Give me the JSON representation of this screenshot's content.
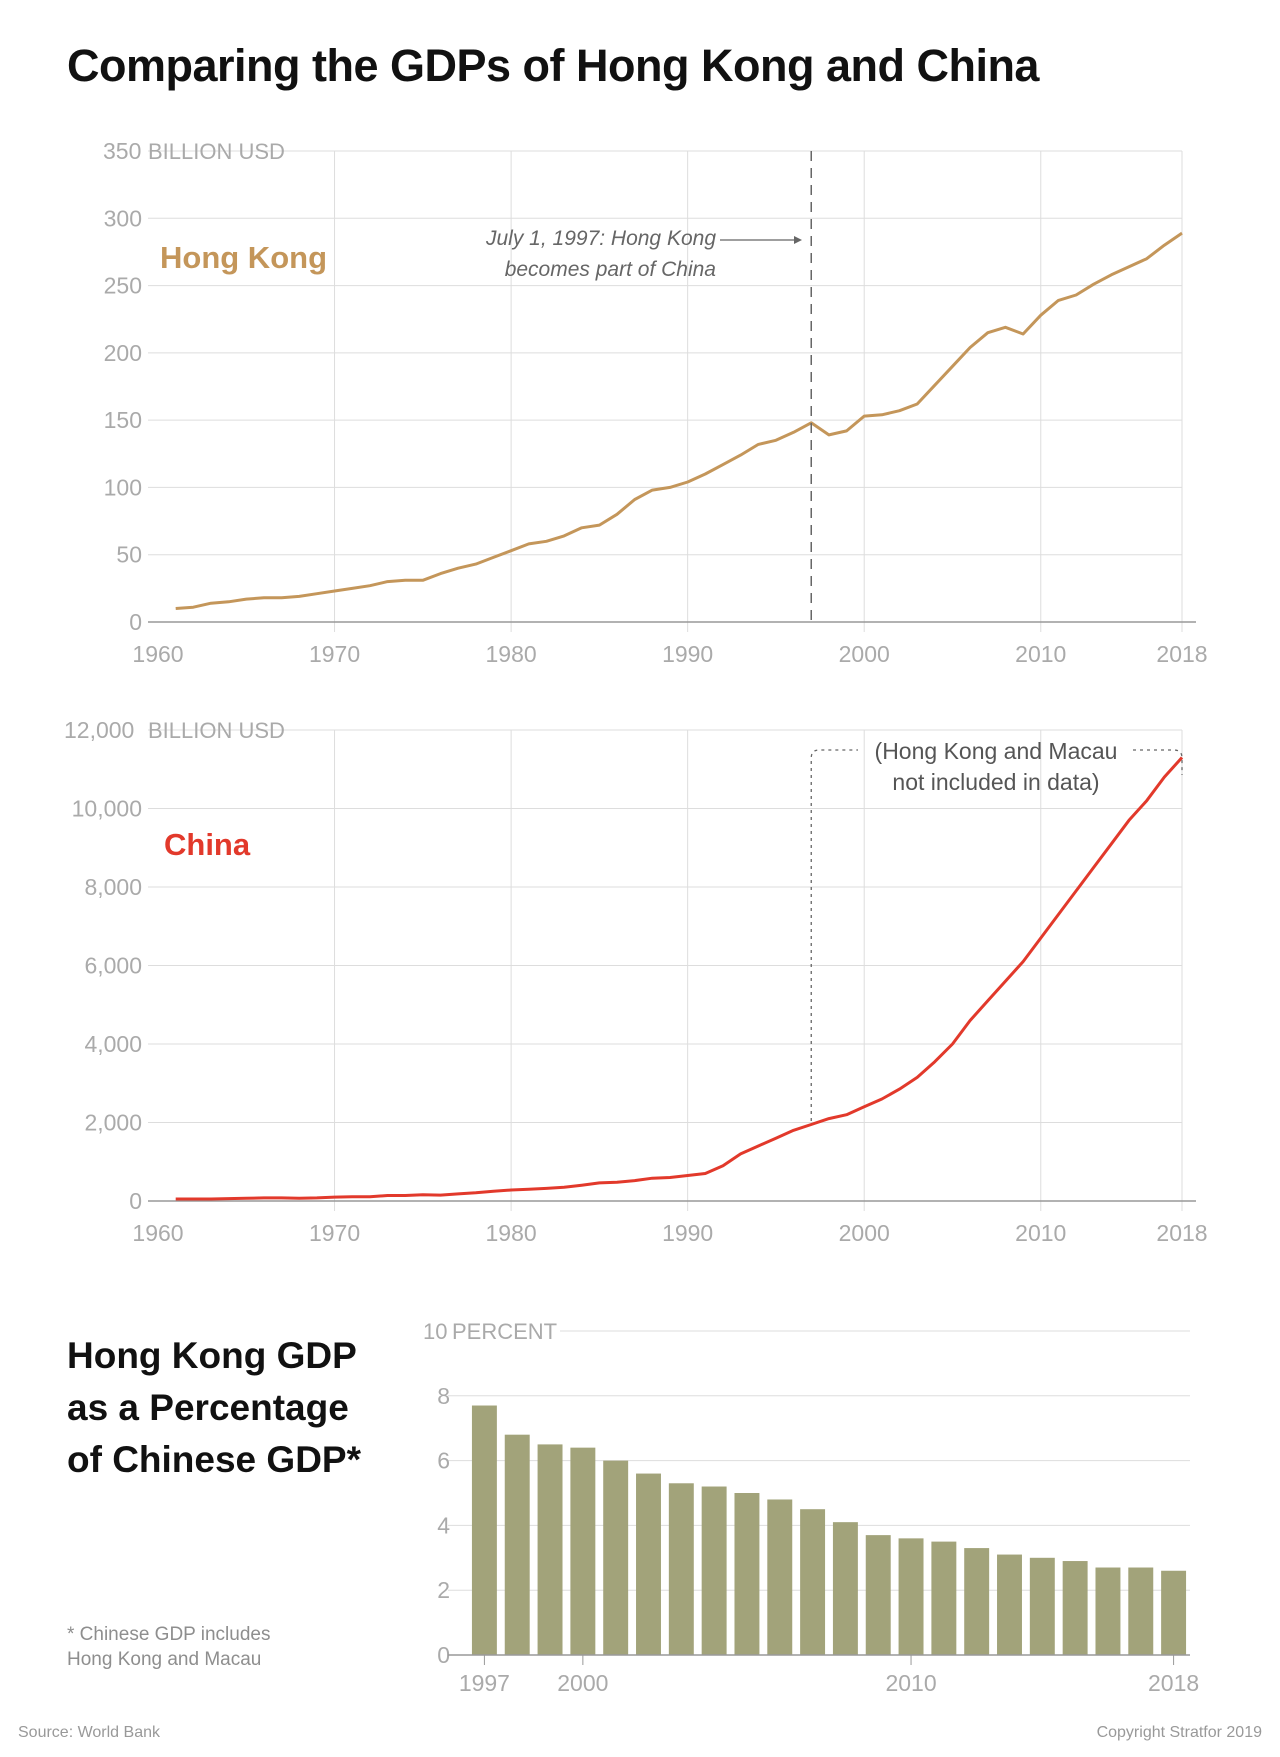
{
  "title": "Comparing the GDPs of Hong Kong and China",
  "side_title": [
    "Hong Kong GDP",
    "as a Percentage",
    "of Chinese GDP*"
  ],
  "footnote": [
    "* Chinese GDP includes",
    "Hong Kong and Macau"
  ],
  "source": "Source: World Bank",
  "copyright": "Copyright Stratfor 2019",
  "colors": {
    "hongkong": "#c4965a",
    "china": "#e2392b",
    "bars": "#a2a37a",
    "axis_text": "#aaaaaa",
    "grid": "#dddddd"
  },
  "chart_data": [
    {
      "type": "line",
      "series_label": "Hong Kong",
      "unit_label": "BILLION USD",
      "ylim": [
        0,
        350
      ],
      "y_ticks": [
        0,
        50,
        100,
        150,
        200,
        250,
        300,
        350
      ],
      "y_tick_labels": [
        "0",
        "50",
        "100",
        "150",
        "200",
        "250",
        "300",
        "350"
      ],
      "xlim": [
        1960,
        2018
      ],
      "x_gridlines": [
        1970,
        1980,
        1990,
        2000,
        2010,
        2018
      ],
      "x_tick_labels": [
        "1960",
        "1970",
        "1980",
        "1990",
        "2000",
        "2010",
        "2018"
      ],
      "annotation": {
        "lines": [
          "July 1, 1997: Hong Kong",
          "becomes part of China"
        ],
        "x": 1997
      },
      "x": [
        1961,
        1962,
        1963,
        1964,
        1965,
        1966,
        1967,
        1968,
        1969,
        1970,
        1971,
        1972,
        1973,
        1974,
        1975,
        1976,
        1977,
        1978,
        1979,
        1980,
        1981,
        1982,
        1983,
        1984,
        1985,
        1986,
        1987,
        1988,
        1989,
        1990,
        1991,
        1992,
        1993,
        1994,
        1995,
        1996,
        1997,
        1998,
        1999,
        2000,
        2001,
        2002,
        2003,
        2004,
        2005,
        2006,
        2007,
        2008,
        2009,
        2010,
        2011,
        2012,
        2013,
        2014,
        2015,
        2016,
        2017,
        2018
      ],
      "values": [
        10,
        11,
        14,
        15,
        17,
        18,
        18,
        19,
        21,
        23,
        25,
        27,
        30,
        31,
        31,
        36,
        40,
        43,
        48,
        53,
        58,
        60,
        64,
        70,
        72,
        80,
        91,
        98,
        100,
        104,
        110,
        117,
        124,
        132,
        135,
        141,
        148,
        139,
        142,
        153,
        154,
        157,
        162,
        176,
        190,
        204,
        215,
        219,
        214,
        228,
        239,
        243,
        251,
        258,
        264,
        270,
        280,
        289
      ]
    },
    {
      "type": "line",
      "series_label": "China",
      "unit_label": "BILLION USD",
      "ylim": [
        0,
        12000
      ],
      "y_ticks": [
        0,
        2000,
        4000,
        6000,
        8000,
        10000,
        12000
      ],
      "y_tick_labels": [
        "0",
        "2,000",
        "4,000",
        "6,000",
        "8,000",
        "10,000",
        "12,000"
      ],
      "xlim": [
        1960,
        2018
      ],
      "x_gridlines": [
        1970,
        1980,
        1990,
        2000,
        2010,
        2018
      ],
      "x_tick_labels": [
        "1960",
        "1970",
        "1980",
        "1990",
        "2000",
        "2010",
        "2018"
      ],
      "annotation": {
        "lines": [
          "(Hong Kong and Macau",
          "not included in data)"
        ],
        "x_range": [
          1997,
          2018
        ]
      },
      "x": [
        1961,
        1962,
        1963,
        1964,
        1965,
        1966,
        1967,
        1968,
        1969,
        1970,
        1971,
        1972,
        1973,
        1974,
        1975,
        1976,
        1977,
        1978,
        1979,
        1980,
        1981,
        1982,
        1983,
        1984,
        1985,
        1986,
        1987,
        1988,
        1989,
        1990,
        1991,
        1992,
        1993,
        1994,
        1995,
        1996,
        1997,
        1998,
        1999,
        2000,
        2001,
        2002,
        2003,
        2004,
        2005,
        2006,
        2007,
        2008,
        2009,
        2010,
        2011,
        2012,
        2013,
        2014,
        2015,
        2016,
        2017,
        2018
      ],
      "values": [
        50,
        50,
        50,
        60,
        70,
        80,
        80,
        70,
        80,
        100,
        110,
        110,
        140,
        140,
        160,
        150,
        180,
        210,
        250,
        280,
        300,
        320,
        350,
        400,
        460,
        480,
        520,
        580,
        600,
        650,
        700,
        900,
        1200,
        1400,
        1600,
        1800,
        1950,
        2100,
        2200,
        2400,
        2600,
        2850,
        3150,
        3550,
        4000,
        4600,
        5100,
        5600,
        6100,
        6700,
        7300,
        7900,
        8500,
        9100,
        9700,
        10200,
        10800,
        11300
      ]
    },
    {
      "type": "bar",
      "unit_label": "PERCENT",
      "ylim": [
        0,
        10
      ],
      "y_ticks": [
        0,
        2,
        4,
        6,
        8,
        10
      ],
      "y_tick_labels": [
        "0",
        "2",
        "4",
        "6",
        "8",
        "10"
      ],
      "x_tick_labels": [
        "1997",
        "2000",
        "2010",
        "2018"
      ],
      "categories": [
        1997,
        1998,
        1999,
        2000,
        2001,
        2002,
        2003,
        2004,
        2005,
        2006,
        2007,
        2008,
        2009,
        2010,
        2011,
        2012,
        2013,
        2014,
        2015,
        2016,
        2017,
        2018
      ],
      "values": [
        7.7,
        6.8,
        6.5,
        6.4,
        6.0,
        5.6,
        5.3,
        5.2,
        5.0,
        4.8,
        4.5,
        4.1,
        3.7,
        3.6,
        3.5,
        3.3,
        3.1,
        3.0,
        2.9,
        2.7,
        2.7,
        2.6
      ]
    }
  ]
}
